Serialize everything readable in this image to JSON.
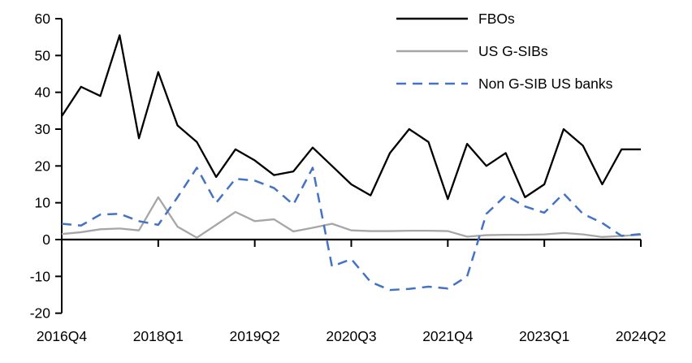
{
  "chart_data": {
    "type": "line",
    "title": "",
    "xlabel": "",
    "ylabel": "",
    "ylim": [
      -20,
      60
    ],
    "ytick_step": 10,
    "y_tick_labels": [
      "60",
      "50",
      "40",
      "30",
      "20",
      "10",
      "0",
      "-10",
      "-20"
    ],
    "x_tick_labels": [
      "2016Q4",
      "2018Q1",
      "2019Q2",
      "2020Q3",
      "2021Q4",
      "2023Q1",
      "2024Q2"
    ],
    "x_tick_every": 5,
    "grid": false,
    "legend_position": "top-right",
    "categories": [
      "2016Q4",
      "2017Q1",
      "2017Q2",
      "2017Q3",
      "2017Q4",
      "2018Q1",
      "2018Q2",
      "2018Q3",
      "2018Q4",
      "2019Q1",
      "2019Q2",
      "2019Q3",
      "2019Q4",
      "2020Q1",
      "2020Q2",
      "2020Q3",
      "2020Q4",
      "2021Q1",
      "2021Q2",
      "2021Q3",
      "2021Q4",
      "2022Q1",
      "2022Q2",
      "2022Q3",
      "2022Q4",
      "2023Q1",
      "2023Q2",
      "2023Q3",
      "2023Q4",
      "2024Q1",
      "2024Q2"
    ],
    "series": [
      {
        "name": "FBOs",
        "color": "#000000",
        "dash": null,
        "values": [
          33.5,
          41.5,
          39,
          55.5,
          27.5,
          45.5,
          31,
          26.5,
          17,
          24.5,
          21.5,
          17.5,
          18.5,
          25,
          20,
          15,
          12,
          23.5,
          30,
          26.5,
          11,
          26,
          20,
          23.5,
          11.5,
          15,
          30,
          25.5,
          15,
          24.5,
          24.5
        ]
      },
      {
        "name": "US G-SIBs",
        "color": "#A6A6A6",
        "dash": null,
        "values": [
          1.5,
          2,
          2.8,
          3,
          2.5,
          11.5,
          3.5,
          0.5,
          4,
          7.5,
          5,
          5.5,
          2.2,
          3.2,
          4.3,
          2.5,
          2.3,
          2.3,
          2.4,
          2.4,
          2.3,
          0.8,
          1.2,
          1.3,
          1.3,
          1.4,
          1.8,
          1.4,
          0.7,
          1,
          1.3
        ]
      },
      {
        "name": "Non G-SIB US banks",
        "color": "#4472C4",
        "dash": [
          12,
          8
        ],
        "values": [
          4.3,
          3.8,
          6.8,
          7,
          5,
          4,
          11.5,
          19.5,
          10,
          16.5,
          16,
          14,
          9.5,
          19.5,
          -7.3,
          -5.3,
          -11.5,
          -13.7,
          -13.4,
          -12.8,
          -13.3,
          -10,
          7,
          12,
          9,
          7.3,
          12.5,
          7,
          4.5,
          1,
          1.5
        ]
      }
    ]
  }
}
